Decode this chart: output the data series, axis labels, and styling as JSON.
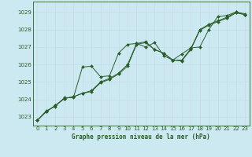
{
  "title": "Graphe pression niveau de la mer (hPa)",
  "bg_color": "#cce8f0",
  "grid_color": "#c8dde8",
  "line_color": "#2a5e2a",
  "marker_color": "#2a5e2a",
  "xlim": [
    -0.5,
    23.5
  ],
  "ylim": [
    1022.5,
    1029.6
  ],
  "yticks": [
    1023,
    1024,
    1025,
    1026,
    1027,
    1028,
    1029
  ],
  "xticks": [
    0,
    1,
    2,
    3,
    4,
    5,
    6,
    7,
    8,
    9,
    10,
    11,
    12,
    13,
    14,
    15,
    16,
    17,
    18,
    19,
    20,
    21,
    22,
    23
  ],
  "series": [
    [
      1022.8,
      1023.3,
      1023.65,
      1024.05,
      1024.15,
      1024.35,
      1024.45,
      1024.95,
      1025.15,
      1025.45,
      1025.9,
      1027.15,
      1027.25,
      1026.85,
      1026.65,
      1026.25,
      1026.2,
      1026.85,
      1027.95,
      1028.25,
      1028.45,
      1028.65,
      1028.95,
      1028.85
    ],
    [
      1022.8,
      1023.3,
      1023.65,
      1024.05,
      1024.15,
      1024.35,
      1024.5,
      1025.0,
      1025.2,
      1025.5,
      1026.0,
      1027.2,
      1027.3,
      1026.85,
      1026.65,
      1026.25,
      1026.25,
      1026.9,
      1028.0,
      1028.3,
      1028.5,
      1028.7,
      1029.0,
      1028.9
    ],
    [
      1022.8,
      1023.35,
      1023.6,
      1024.1,
      1024.1,
      1025.85,
      1025.9,
      1025.3,
      1025.35,
      1026.65,
      1027.15,
      1027.2,
      1027.0,
      1027.25,
      1026.5,
      1026.25,
      1026.6,
      1026.95,
      1027.0,
      1028.0,
      1028.75,
      1028.8,
      1029.0,
      1028.85
    ]
  ]
}
